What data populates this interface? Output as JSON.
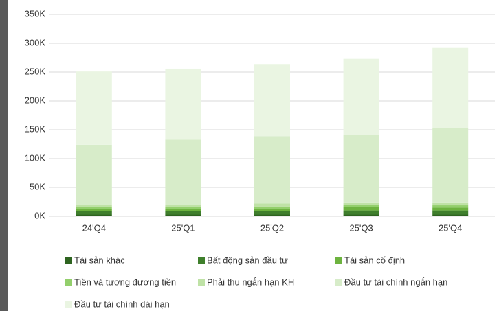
{
  "chart_data": {
    "type": "stacked_bar",
    "categories": [
      "24'Q4",
      "25'Q1",
      "25'Q2",
      "25'Q3",
      "25'Q4"
    ],
    "series": [
      {
        "name": "Tài sản khác",
        "color": "#2e6420",
        "values": [
          3000,
          3000,
          3000,
          3000,
          3000
        ]
      },
      {
        "name": "Bất động sản đầu tư",
        "color": "#3f7f2c",
        "values": [
          6000,
          6000,
          6000,
          7000,
          7000
        ]
      },
      {
        "name": "Tài sản cố định",
        "color": "#6db33f",
        "values": [
          3000,
          3000,
          3000,
          6000,
          5000
        ]
      },
      {
        "name": "Tiền và tương đương tiền",
        "color": "#93cf6c",
        "values": [
          4000,
          4000,
          5000,
          4000,
          4000
        ]
      },
      {
        "name": "Phải thu ngắn hạn KH",
        "color": "#bfe2a6",
        "values": [
          4000,
          4000,
          5000,
          4000,
          5000
        ]
      },
      {
        "name": "Đầu tư tài chính ngắn hạn",
        "color": "#d7ecc9",
        "values": [
          104000,
          113000,
          117000,
          117000,
          129000
        ]
      },
      {
        "name": "Đầu tư tài chính dài hạn",
        "color": "#eaf5e2",
        "values": [
          127000,
          123000,
          125000,
          132000,
          139000
        ]
      }
    ],
    "ylim": [
      0,
      350000
    ],
    "yticks": [
      {
        "value": 0,
        "label": "0K"
      },
      {
        "value": 50000,
        "label": "50K"
      },
      {
        "value": 100000,
        "label": "100K"
      },
      {
        "value": 150000,
        "label": "150K"
      },
      {
        "value": 200000,
        "label": "200K"
      },
      {
        "value": 250000,
        "label": "250K"
      },
      {
        "value": 300000,
        "label": "300K"
      },
      {
        "value": 350000,
        "label": "350K"
      }
    ],
    "grid": true
  }
}
